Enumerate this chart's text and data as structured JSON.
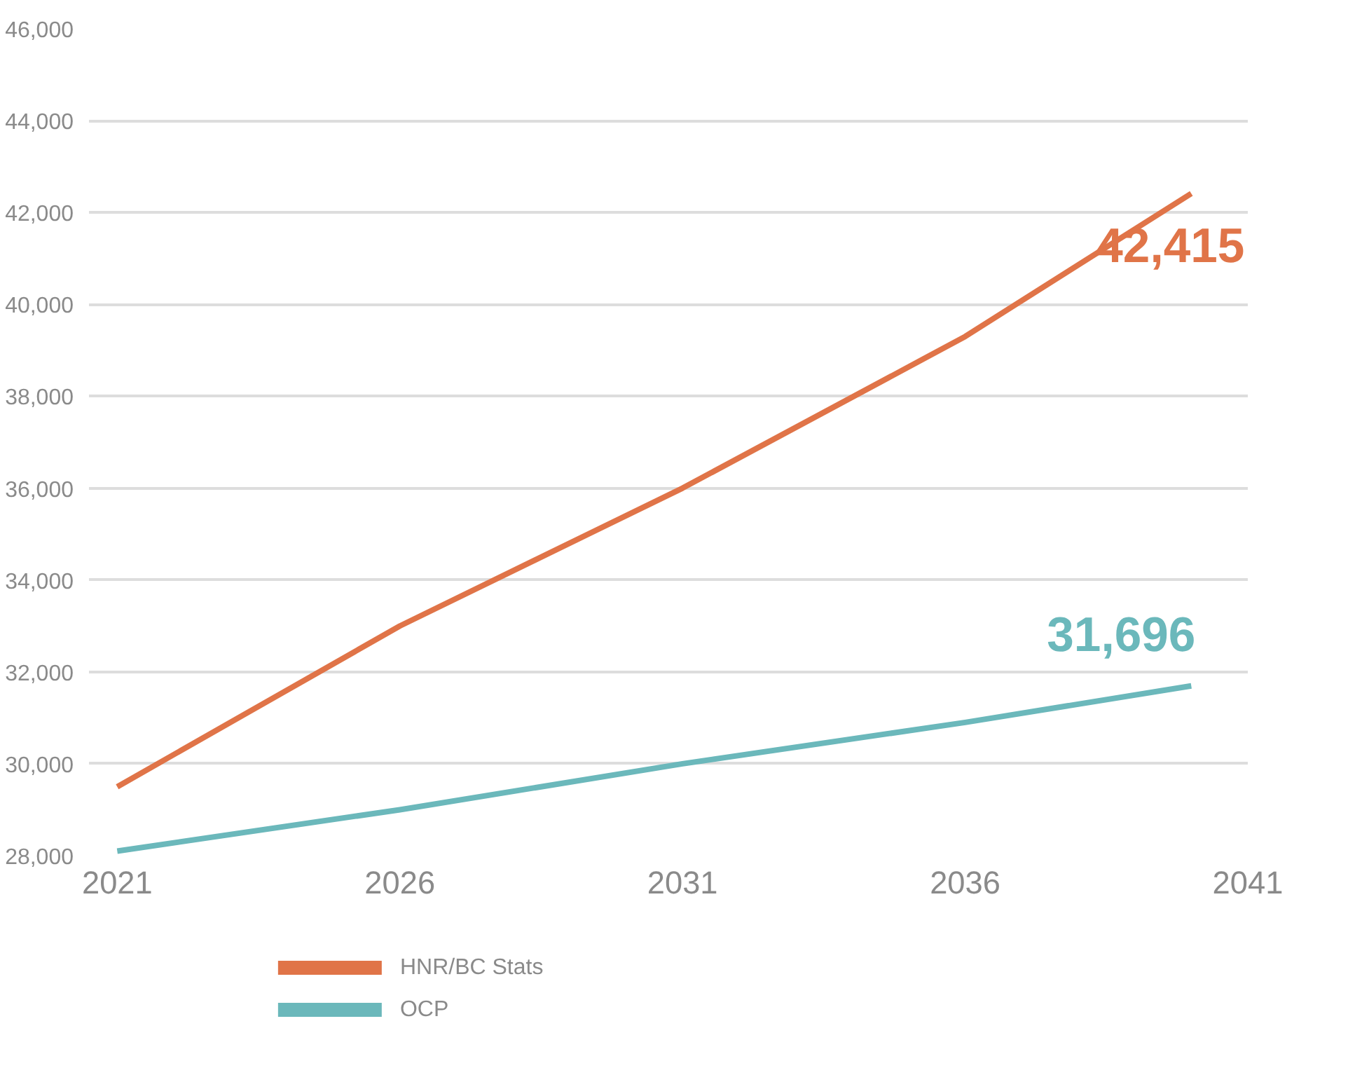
{
  "chart_data": {
    "type": "line",
    "x": [
      2021,
      2026,
      2031,
      2036,
      2040
    ],
    "series": [
      {
        "name": "HNR/BC Stats",
        "color": "#e07448",
        "values": [
          29500,
          33000,
          36000,
          39300,
          42415
        ],
        "value_labels": [
          null,
          null,
          null,
          null,
          "42,415"
        ]
      },
      {
        "name": "OCP",
        "color": "#6bb8bb",
        "values": [
          28100,
          29000,
          30000,
          30900,
          31696
        ],
        "value_labels": [
          null,
          null,
          null,
          null,
          "31,696"
        ]
      }
    ],
    "xlim": [
      2020.5,
      2041
    ],
    "xticks": [
      2021,
      2026,
      2031,
      2036,
      2041
    ],
    "ylim": [
      28000,
      46000
    ],
    "yticks": [
      {
        "value": 28000,
        "label": "28,000"
      },
      {
        "value": 30000,
        "label": "30,000"
      },
      {
        "value": 32000,
        "label": "32,000"
      },
      {
        "value": 34000,
        "label": "34,000"
      },
      {
        "value": 36000,
        "label": "36,000"
      },
      {
        "value": 38000,
        "label": "38,000"
      },
      {
        "value": 40000,
        "label": "40,000"
      },
      {
        "value": 42000,
        "label": "42,000"
      },
      {
        "value": 44000,
        "label": "44,000"
      },
      {
        "value": 46000,
        "label": "46,000"
      }
    ],
    "grid": "y",
    "legend": "bottom left",
    "marker": "none",
    "line_style": "solid"
  }
}
